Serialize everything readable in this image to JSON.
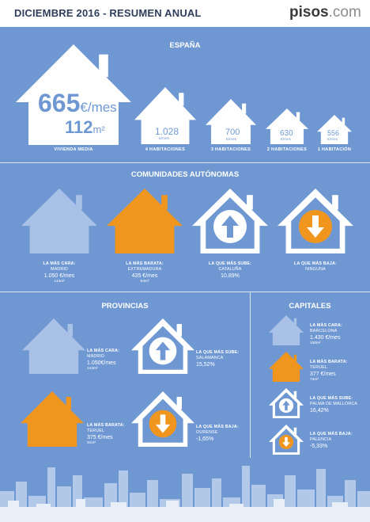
{
  "header": {
    "title": "DICIEMBRE 2016 - RESUMEN ANUAL",
    "logo_main": "pisos",
    "logo_suffix": ".com"
  },
  "colors": {
    "background": "#6f98d3",
    "white": "#ffffff",
    "orange": "#f0961f",
    "light_blue": "#a9c1e6"
  },
  "espana": {
    "title": "ESPAÑA",
    "main": {
      "price": "665",
      "unit": "€/mes",
      "area": "112",
      "area_unit": "m²",
      "caption": "VIVIENDA MEDIA"
    },
    "items": [
      {
        "value": "1.028",
        "unit": "€/mes",
        "caption": "4 HABITACIONES"
      },
      {
        "value": "700",
        "unit": "€/mes",
        "caption": "3 HABITACIONES"
      },
      {
        "value": "630",
        "unit": "€/mes",
        "caption": "2 HABITACIONES"
      },
      {
        "value": "556",
        "unit": "€/mes",
        "caption": "1 HABITACIÓN"
      }
    ]
  },
  "comunidades": {
    "title": "COMUNIDADES AUTÓNOMAS",
    "items": [
      {
        "label": "LA MÁS CARA:",
        "place": "MADRID",
        "value": "1.050 €/mes",
        "area": "144m²"
      },
      {
        "label": "LA MÁS BARATA:",
        "place": "EXTREMADURA",
        "value": "435 €/mes",
        "area": "94m²"
      },
      {
        "label": "LA QUE MÁS SUBE:",
        "place": "CATALUÑA",
        "value": "10,89%"
      },
      {
        "label": "LA QUE MÁS BAJA:",
        "place": "NINGUNA"
      }
    ]
  },
  "provincias": {
    "title": "PROVINCIAS",
    "cara": {
      "label": "LA MÁS CARA:",
      "place": "MADRID",
      "value": "1.050€/mes",
      "area": "144m²"
    },
    "sube": {
      "label": "LA QUE MÁS SUBE:",
      "place": "SALAMANCA",
      "value": "15,52%"
    },
    "barata": {
      "label": "LA MÁS BARATA:",
      "place": "TERUEL",
      "value": "375 €/mes",
      "area": "91m²"
    },
    "baja": {
      "label": "LA QUE MÁS BAJA:",
      "place": "OURENSE",
      "value": "-1,65%"
    }
  },
  "capitales": {
    "title": "CAPITALES",
    "items": [
      {
        "label": "LA MÁS CARA:",
        "place": "BARCELONA",
        "value": "1.430 €/mes",
        "area": "100m²"
      },
      {
        "label": "LA MÁS BARATA:",
        "place": "TERUEL",
        "value": "377 €/mes",
        "area": "74m²"
      },
      {
        "label": "LA QUE MÁS SUBE:",
        "place": "PALMA DE MALLORCA",
        "value": "16,42%"
      },
      {
        "label": "LA QUE MÁS BAJA:",
        "place": "PALENCIA",
        "value": "-5,33%"
      }
    ]
  }
}
